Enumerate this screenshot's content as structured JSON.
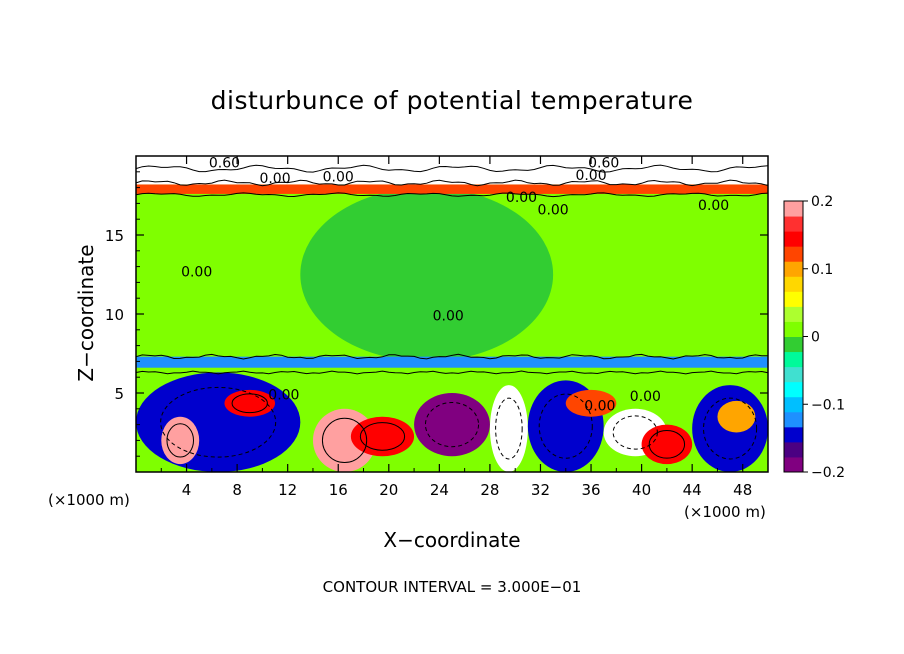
{
  "chart_data": {
    "type": "heatmap",
    "title": "disturbunce of potential temperature",
    "xlabel": "X−coordinate",
    "ylabel": "Z−coordinate",
    "x_unit_left": "(×1000 m)",
    "x_unit_right": "(×1000 m)",
    "xlim": [
      0,
      50
    ],
    "ylim": [
      0,
      20
    ],
    "x_ticks": [
      4,
      8,
      12,
      16,
      20,
      24,
      28,
      32,
      36,
      40,
      44,
      48
    ],
    "y_ticks": [
      5,
      10,
      15
    ],
    "colorbar": {
      "range": [
        -0.2,
        0.2
      ],
      "tick_values": [
        0.2,
        0.1,
        0,
        -0.1,
        -0.2
      ],
      "tick_labels": [
        "0.2",
        "0.1",
        "0",
        "−0.1",
        "−0.2"
      ],
      "colors": [
        "#800080",
        "#4b0082",
        "#0000cd",
        "#1e90ff",
        "#00bfff",
        "#00ffff",
        "#40e0d0",
        "#00fa9a",
        "#32cd32",
        "#7fff00",
        "#adff2f",
        "#ffff00",
        "#ffd700",
        "#ffa500",
        "#ff4500",
        "#ff0000",
        "#ff3030",
        "#ffa0a0"
      ]
    },
    "contour_labels": [
      {
        "text": "0.60",
        "x": 7,
        "z": 19.6
      },
      {
        "text": "0.60",
        "x": 37,
        "z": 19.6
      },
      {
        "text": "0.00",
        "x": 11,
        "z": 18.6
      },
      {
        "text": "0.00",
        "x": 16,
        "z": 18.7
      },
      {
        "text": "0.00",
        "x": 36,
        "z": 18.8
      },
      {
        "text": "0.00",
        "x": 30.5,
        "z": 17.4
      },
      {
        "text": "0.00",
        "x": 33,
        "z": 16.6
      },
      {
        "text": "0.00",
        "x": 45.7,
        "z": 16.9
      },
      {
        "text": "0.00",
        "x": 4.8,
        "z": 12.7
      },
      {
        "text": "0.00",
        "x": 24.7,
        "z": 9.9
      },
      {
        "text": "0.00",
        "x": 11.7,
        "z": 4.9
      },
      {
        "text": "0.00",
        "x": 36.7,
        "z": 4.2
      },
      {
        "text": "0.00",
        "x": 40.3,
        "z": 4.8
      }
    ],
    "regions": [
      {
        "level": 0.0,
        "x": [
          0,
          50
        ],
        "z": [
          0,
          20
        ]
      },
      {
        "level": -0.02,
        "x": [
          13,
          33
        ],
        "z": [
          7,
          18
        ]
      },
      {
        "level": -0.12,
        "x": [
          0,
          50
        ],
        "z": [
          6.6,
          7.3
        ]
      },
      {
        "level": 0.12,
        "x": [
          0,
          50
        ],
        "z": [
          17.6,
          18.2
        ]
      },
      {
        "level": -0.25,
        "x": [
          0,
          50
        ],
        "z": [
          18.2,
          20
        ]
      },
      {
        "level": -0.15,
        "x": [
          0,
          13
        ],
        "z": [
          0,
          6.3
        ]
      },
      {
        "level": 0.18,
        "x": [
          2,
          5
        ],
        "z": [
          0.5,
          3.5
        ]
      },
      {
        "level": 0.15,
        "x": [
          7,
          11
        ],
        "z": [
          3.5,
          5.2
        ]
      },
      {
        "level": 0.2,
        "x": [
          14,
          19
        ],
        "z": [
          0,
          4
        ]
      },
      {
        "level": 0.15,
        "x": [
          17,
          22
        ],
        "z": [
          1,
          3.5
        ]
      },
      {
        "level": -0.18,
        "x": [
          22,
          28
        ],
        "z": [
          1,
          5
        ]
      },
      {
        "level": -0.3,
        "x": [
          28,
          31
        ],
        "z": [
          0,
          5.5
        ]
      },
      {
        "level": -0.15,
        "x": [
          31,
          37
        ],
        "z": [
          0,
          5.8
        ]
      },
      {
        "level": 0.12,
        "x": [
          34,
          38
        ],
        "z": [
          3.5,
          5.2
        ]
      },
      {
        "level": -0.3,
        "x": [
          37,
          42
        ],
        "z": [
          1,
          4
        ]
      },
      {
        "level": 0.15,
        "x": [
          40,
          44
        ],
        "z": [
          0.5,
          3
        ]
      },
      {
        "level": -0.15,
        "x": [
          44,
          50
        ],
        "z": [
          0,
          5.5
        ]
      },
      {
        "level": 0.1,
        "x": [
          46,
          49
        ],
        "z": [
          2.5,
          4.5
        ]
      }
    ]
  }
}
